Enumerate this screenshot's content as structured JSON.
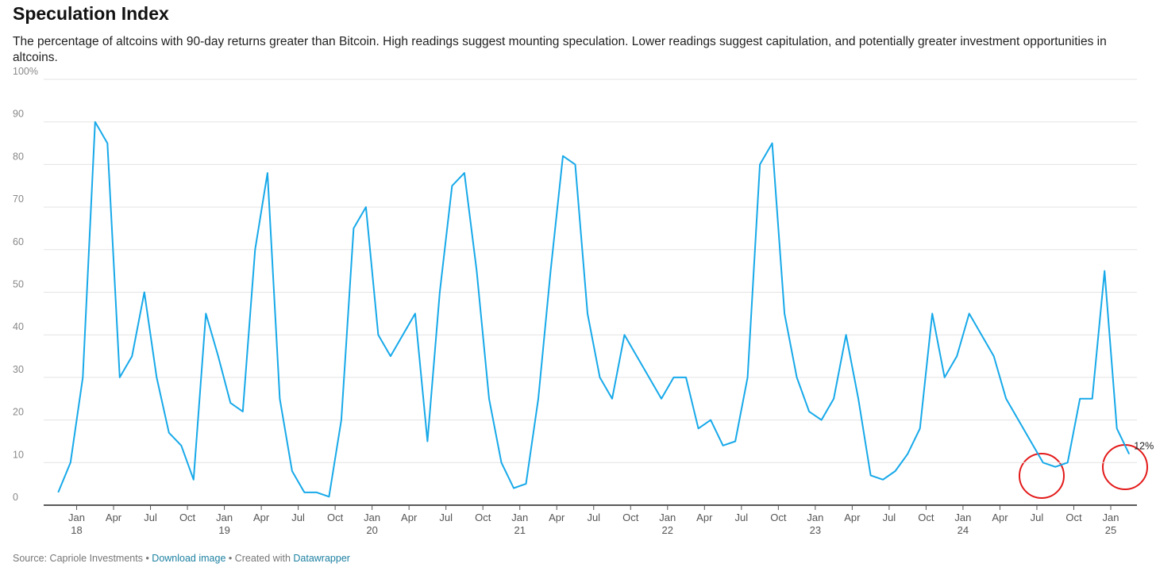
{
  "chart_data": {
    "type": "line",
    "title": "Speculation Index",
    "subtitle": "The percentage of altcoins with 90-day returns greater than Bitcoin. High readings suggest mounting speculation. Lower readings suggest capitulation, and potentially greater investment opportunities in altcoins.",
    "color": "#17a9e9",
    "grid": true,
    "x": [
      "2017-11",
      "2017-12",
      "2018-01",
      "2018-02",
      "2018-03",
      "2018-04",
      "2018-05",
      "2018-06",
      "2018-07",
      "2018-08",
      "2018-09",
      "2018-10",
      "2018-11",
      "2018-12",
      "2019-01",
      "2019-02",
      "2019-03",
      "2019-04",
      "2019-05",
      "2019-06",
      "2019-07",
      "2019-08",
      "2019-09",
      "2019-10",
      "2019-11",
      "2019-12",
      "2020-01",
      "2020-02",
      "2020-03",
      "2020-04",
      "2020-05",
      "2020-06",
      "2020-07",
      "2020-08",
      "2020-09",
      "2020-10",
      "2020-11",
      "2020-12",
      "2021-01",
      "2021-02",
      "2021-03",
      "2021-04",
      "2021-05",
      "2021-06",
      "2021-07",
      "2021-08",
      "2021-09",
      "2021-10",
      "2021-11",
      "2021-12",
      "2022-01",
      "2022-02",
      "2022-03",
      "2022-04",
      "2022-05",
      "2022-06",
      "2022-07",
      "2022-08",
      "2022-09",
      "2022-10",
      "2022-11",
      "2022-12",
      "2023-01",
      "2023-02",
      "2023-03",
      "2023-04",
      "2023-05",
      "2023-06",
      "2023-07",
      "2023-08",
      "2023-09",
      "2023-10",
      "2023-11",
      "2023-12",
      "2024-01",
      "2024-02",
      "2024-03",
      "2024-04",
      "2024-05",
      "2024-06",
      "2024-07",
      "2024-08",
      "2024-09",
      "2024-10",
      "2024-11",
      "2024-12",
      "2025-01",
      "2025-02"
    ],
    "values": [
      3,
      10,
      30,
      90,
      85,
      30,
      35,
      50,
      30,
      17,
      14,
      6,
      45,
      35,
      24,
      22,
      60,
      78,
      25,
      8,
      3,
      3,
      2,
      20,
      65,
      70,
      40,
      35,
      40,
      45,
      15,
      50,
      75,
      78,
      55,
      25,
      10,
      4,
      5,
      25,
      55,
      82,
      80,
      45,
      30,
      25,
      40,
      35,
      30,
      25,
      30,
      30,
      18,
      20,
      14,
      15,
      30,
      80,
      85,
      45,
      30,
      22,
      20,
      25,
      40,
      25,
      7,
      6,
      8,
      12,
      18,
      45,
      30,
      35,
      45,
      40,
      35,
      25,
      20,
      15,
      10,
      9,
      10,
      25,
      25,
      55,
      18,
      12
    ],
    "xlim": [
      "2017-10",
      "2025-03"
    ],
    "xticks": [
      {
        "value": "2018-01",
        "label": "Jan",
        "year": "18"
      },
      {
        "value": "2018-04",
        "label": "Apr"
      },
      {
        "value": "2018-07",
        "label": "Jul"
      },
      {
        "value": "2018-10",
        "label": "Oct"
      },
      {
        "value": "2019-01",
        "label": "Jan",
        "year": "19"
      },
      {
        "value": "2019-04",
        "label": "Apr"
      },
      {
        "value": "2019-07",
        "label": "Jul"
      },
      {
        "value": "2019-10",
        "label": "Oct"
      },
      {
        "value": "2020-01",
        "label": "Jan",
        "year": "20"
      },
      {
        "value": "2020-04",
        "label": "Apr"
      },
      {
        "value": "2020-07",
        "label": "Jul"
      },
      {
        "value": "2020-10",
        "label": "Oct"
      },
      {
        "value": "2021-01",
        "label": "Jan",
        "year": "21"
      },
      {
        "value": "2021-04",
        "label": "Apr"
      },
      {
        "value": "2021-07",
        "label": "Jul"
      },
      {
        "value": "2021-10",
        "label": "Oct"
      },
      {
        "value": "2022-01",
        "label": "Jan",
        "year": "22"
      },
      {
        "value": "2022-04",
        "label": "Apr"
      },
      {
        "value": "2022-07",
        "label": "Jul"
      },
      {
        "value": "2022-10",
        "label": "Oct"
      },
      {
        "value": "2023-01",
        "label": "Jan",
        "year": "23"
      },
      {
        "value": "2023-04",
        "label": "Apr"
      },
      {
        "value": "2023-07",
        "label": "Jul"
      },
      {
        "value": "2023-10",
        "label": "Oct"
      },
      {
        "value": "2024-01",
        "label": "Jan",
        "year": "24"
      },
      {
        "value": "2024-04",
        "label": "Apr"
      },
      {
        "value": "2024-07",
        "label": "Jul"
      },
      {
        "value": "2024-10",
        "label": "Oct"
      },
      {
        "value": "2025-01",
        "label": "Jan",
        "year": "25"
      }
    ],
    "ylim": [
      0,
      100
    ],
    "yticks": [
      0,
      10,
      20,
      30,
      40,
      50,
      60,
      70,
      80,
      90,
      {
        "value": 100,
        "label": "100%"
      }
    ],
    "annotation": {
      "text": "12%"
    },
    "footer": [
      "Source: Capriole Investments",
      " • ",
      "Download image",
      " • Created with ",
      "Datawrapper"
    ]
  }
}
